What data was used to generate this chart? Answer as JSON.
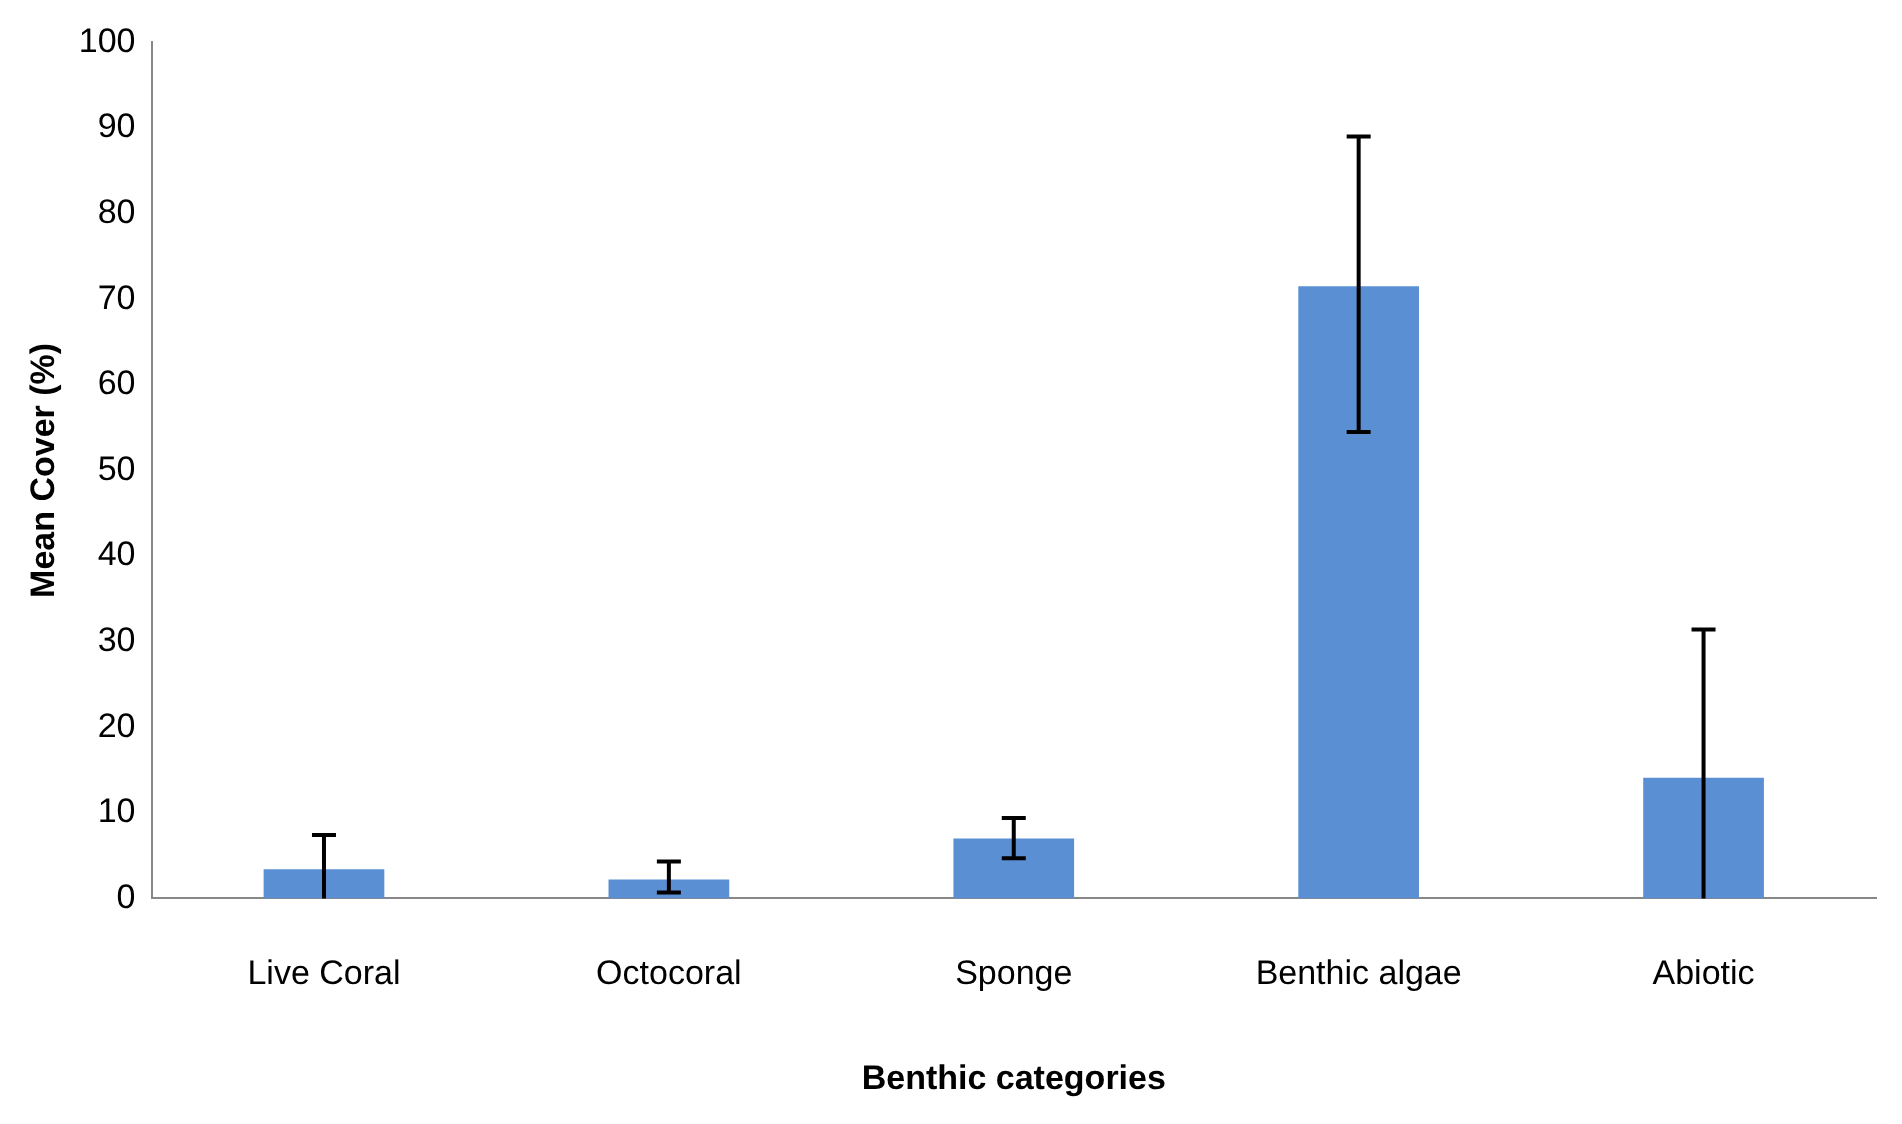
{
  "chart_data": {
    "type": "bar",
    "xlabel": "Benthic categories",
    "ylabel": "Mean Cover (%)",
    "categories": [
      "Live Coral",
      "Octocoral",
      "Sponge",
      "Benthic algae",
      "Abiotic"
    ],
    "values": [
      3.4,
      2.2,
      7,
      71.5,
      14.1
    ],
    "errors": [
      [
        0,
        7.4
      ],
      [
        0.7,
        4.3
      ],
      [
        4.7,
        9.4
      ],
      [
        54.5,
        89
      ],
      [
        0,
        31.4
      ]
    ],
    "color": "#5b8fd4",
    "ylim": [
      0,
      100
    ],
    "yticks": [
      0,
      10,
      20,
      30,
      40,
      50,
      60,
      70,
      80,
      90,
      100
    ],
    "grid": false,
    "legend": false
  }
}
